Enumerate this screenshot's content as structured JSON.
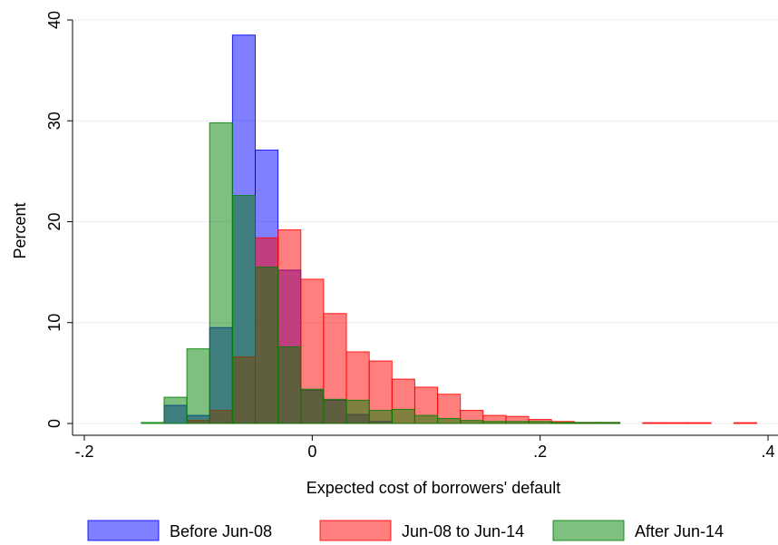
{
  "chart_data": {
    "type": "bar",
    "title": "",
    "xlabel": "Expected cost of borrowers' default",
    "ylabel": "Percent",
    "xlim": [
      -0.2,
      0.4
    ],
    "ylim": [
      0,
      40
    ],
    "x_ticks": [
      -0.2,
      0,
      0.2,
      0.4
    ],
    "x_tick_labels": [
      "-.2",
      "0",
      ".2",
      ".4"
    ],
    "y_ticks": [
      0,
      10,
      20,
      30,
      40
    ],
    "y_tick_labels": [
      "0",
      "10",
      "20",
      "30",
      "40"
    ],
    "grid": true,
    "legend_position": "bottom",
    "bin_width": 0.02,
    "series": [
      {
        "name": "Before Jun-08",
        "color": "#0000ff",
        "bins": [
          {
            "x0": -0.13,
            "value": 1.8
          },
          {
            "x0": -0.11,
            "value": 0.8
          },
          {
            "x0": -0.09,
            "value": 9.5
          },
          {
            "x0": -0.07,
            "value": 38.5
          },
          {
            "x0": -0.05,
            "value": 27.1
          },
          {
            "x0": -0.03,
            "value": 15.2
          },
          {
            "x0": -0.01,
            "value": 3.3
          },
          {
            "x0": 0.01,
            "value": 2.3
          },
          {
            "x0": 0.03,
            "value": 0.9
          },
          {
            "x0": 0.05,
            "value": 0.2
          }
        ]
      },
      {
        "name": "Jun-08 to Jun-14",
        "color": "#ff0000",
        "bins": [
          {
            "x0": -0.11,
            "value": 0.3
          },
          {
            "x0": -0.09,
            "value": 1.3
          },
          {
            "x0": -0.07,
            "value": 6.6
          },
          {
            "x0": -0.05,
            "value": 18.4
          },
          {
            "x0": -0.03,
            "value": 19.2
          },
          {
            "x0": -0.01,
            "value": 14.3
          },
          {
            "x0": 0.01,
            "value": 10.9
          },
          {
            "x0": 0.03,
            "value": 7.1
          },
          {
            "x0": 0.05,
            "value": 6.2
          },
          {
            "x0": 0.07,
            "value": 4.4
          },
          {
            "x0": 0.09,
            "value": 3.6
          },
          {
            "x0": 0.11,
            "value": 2.9
          },
          {
            "x0": 0.13,
            "value": 1.3
          },
          {
            "x0": 0.15,
            "value": 0.8
          },
          {
            "x0": 0.17,
            "value": 0.7
          },
          {
            "x0": 0.19,
            "value": 0.4
          },
          {
            "x0": 0.21,
            "value": 0.2
          },
          {
            "x0": 0.23,
            "value": 0.1
          },
          {
            "x0": 0.25,
            "value": 0.1
          },
          {
            "x0": 0.29,
            "value": 0.08
          },
          {
            "x0": 0.31,
            "value": 0.08
          },
          {
            "x0": 0.33,
            "value": 0.08
          },
          {
            "x0": 0.37,
            "value": 0.08
          }
        ]
      },
      {
        "name": "After Jun-14",
        "color": "#008000",
        "bins": [
          {
            "x0": -0.15,
            "value": 0.1
          },
          {
            "x0": -0.13,
            "value": 2.6
          },
          {
            "x0": -0.11,
            "value": 7.4
          },
          {
            "x0": -0.09,
            "value": 29.8
          },
          {
            "x0": -0.07,
            "value": 22.6
          },
          {
            "x0": -0.05,
            "value": 15.5
          },
          {
            "x0": -0.03,
            "value": 7.6
          },
          {
            "x0": -0.01,
            "value": 3.4
          },
          {
            "x0": 0.01,
            "value": 2.4
          },
          {
            "x0": 0.03,
            "value": 2.3
          },
          {
            "x0": 0.05,
            "value": 1.3
          },
          {
            "x0": 0.07,
            "value": 1.4
          },
          {
            "x0": 0.09,
            "value": 0.8
          },
          {
            "x0": 0.11,
            "value": 0.5
          },
          {
            "x0": 0.13,
            "value": 0.3
          },
          {
            "x0": 0.15,
            "value": 0.2
          },
          {
            "x0": 0.17,
            "value": 0.2
          },
          {
            "x0": 0.19,
            "value": 0.2
          },
          {
            "x0": 0.21,
            "value": 0.1
          },
          {
            "x0": 0.23,
            "value": 0.1
          },
          {
            "x0": 0.25,
            "value": 0.1
          }
        ]
      }
    ]
  }
}
